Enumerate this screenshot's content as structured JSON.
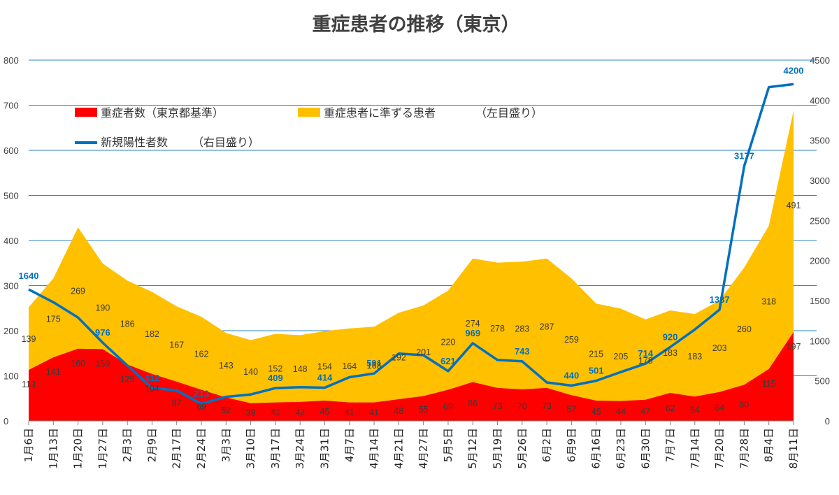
{
  "chart_data": {
    "type": "area+line",
    "title": "重症患者の推移（東京）",
    "categories": [
      "1月6日",
      "1月13日",
      "1月20日",
      "1月27日",
      "2月3日",
      "2月9日",
      "2月17日",
      "2月24日",
      "3月3日",
      "3月10日",
      "3月17日",
      "3月24日",
      "3月31日",
      "4月7日",
      "4月14日",
      "4月21日",
      "4月27日",
      "5月5日",
      "5月12日",
      "5月19日",
      "5月26日",
      "6月2日",
      "6月9日",
      "6月16日",
      "6月23日",
      "6月30日",
      "7月7日",
      "7月14日",
      "7月20日",
      "7月28日",
      "8月4日",
      "8月11日"
    ],
    "series": [
      {
        "name": "重症者数（東京都基準）",
        "axis": "left",
        "type": "area",
        "color": "#FF0000",
        "values": [
          113,
          141,
          160,
          159,
          125,
          104,
          87,
          69,
          52,
          39,
          41,
          42,
          45,
          41,
          41,
          48,
          55,
          69,
          86,
          73,
          70,
          73,
          57,
          45,
          44,
          47,
          62,
          54,
          64,
          80,
          115,
          197
        ]
      },
      {
        "name": "重症患者に準ずる患者",
        "axis": "left",
        "type": "area",
        "color": "#FFC000",
        "values": [
          139,
          175,
          269,
          190,
          186,
          182,
          167,
          162,
          143,
          140,
          152,
          148,
          154,
          164,
          168,
          192,
          201,
          220,
          274,
          278,
          283,
          287,
          259,
          215,
          205,
          178,
          183,
          183,
          203,
          260,
          318,
          491
        ]
      },
      {
        "name": "新規陽性者数",
        "axis": "right",
        "type": "line",
        "color": "#0070C0",
        "values": [
          1640,
          1480,
          1290,
          976,
          690,
          412,
          380,
          213,
          300,
          330,
          409,
          420,
          414,
          545,
          591,
          840,
          820,
          621,
          969,
          760,
          743,
          480,
          440,
          501,
          610,
          714,
          920,
          1140,
          1387,
          3177,
          4163,
          4200
        ],
        "labels": [
          "1640",
          "",
          "",
          "976",
          "",
          "412",
          "",
          "213",
          "",
          "",
          "409",
          "",
          "414",
          "",
          "591",
          "",
          "",
          "621",
          "969",
          "",
          "743",
          "",
          "440",
          "501",
          "",
          "714",
          "920",
          "",
          "1387",
          "3177",
          "",
          "4200"
        ]
      }
    ],
    "legend": {
      "severe": "重症者数（東京都基準）",
      "quasi": "重症患者に準ずる患者",
      "left_note": "（左目盛り）",
      "positive": "新規陽性者数",
      "right_note": "（右目盛り）"
    },
    "y_left": {
      "min": 0,
      "max": 800,
      "ticks": [
        0,
        100,
        200,
        300,
        400,
        500,
        600,
        700,
        800
      ]
    },
    "y_right": {
      "min": 0,
      "max": 4500,
      "ticks": [
        0,
        500,
        1000,
        1500,
        2000,
        2500,
        3000,
        3500,
        4000,
        4500
      ]
    },
    "grid": true
  }
}
